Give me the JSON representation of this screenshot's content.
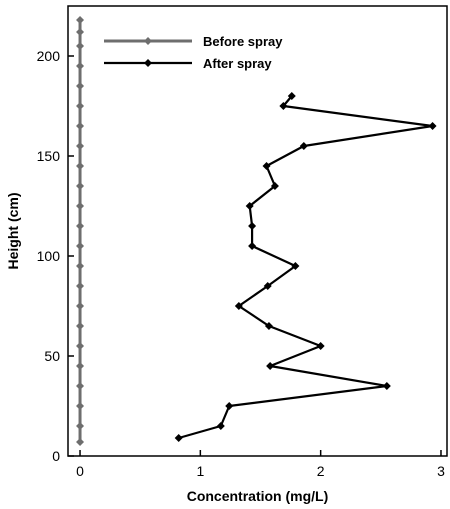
{
  "chart_data": {
    "type": "line",
    "xlabel": "Concentration (mg/L)",
    "ylabel": "Height (cm)",
    "xlim": [
      -0.1,
      3.05
    ],
    "ylim": [
      0,
      225
    ],
    "xticks": [
      0,
      1,
      2,
      3
    ],
    "yticks": [
      0,
      50,
      100,
      150,
      200
    ],
    "grid": false,
    "legend_position": "top-left",
    "series": [
      {
        "name": "Before spray",
        "color": "#6e6e6e",
        "marker": "diamond",
        "points": [
          [
            0,
            7
          ],
          [
            0,
            15
          ],
          [
            0,
            25
          ],
          [
            0,
            35
          ],
          [
            0,
            45
          ],
          [
            0,
            55
          ],
          [
            0,
            65
          ],
          [
            0,
            75
          ],
          [
            0,
            85
          ],
          [
            0,
            95
          ],
          [
            0,
            105
          ],
          [
            0,
            115
          ],
          [
            0,
            125
          ],
          [
            0,
            135
          ],
          [
            0,
            145
          ],
          [
            0,
            155
          ],
          [
            0,
            165
          ],
          [
            0,
            175
          ],
          [
            0,
            185
          ],
          [
            0,
            195
          ],
          [
            0,
            205
          ],
          [
            0,
            212
          ],
          [
            0,
            218
          ]
        ]
      },
      {
        "name": "After spray",
        "color": "#000000",
        "marker": "diamond",
        "points": [
          [
            0.82,
            9
          ],
          [
            1.17,
            15
          ],
          [
            1.24,
            25
          ],
          [
            2.55,
            35
          ],
          [
            1.58,
            45
          ],
          [
            2.0,
            55
          ],
          [
            1.57,
            65
          ],
          [
            1.32,
            75
          ],
          [
            1.56,
            85
          ],
          [
            1.79,
            95
          ],
          [
            1.43,
            105
          ],
          [
            1.43,
            115
          ],
          [
            1.41,
            125
          ],
          [
            1.62,
            135
          ],
          [
            1.55,
            145
          ],
          [
            1.86,
            155
          ],
          [
            2.93,
            165
          ],
          [
            1.69,
            175
          ],
          [
            1.76,
            180
          ]
        ]
      }
    ]
  }
}
